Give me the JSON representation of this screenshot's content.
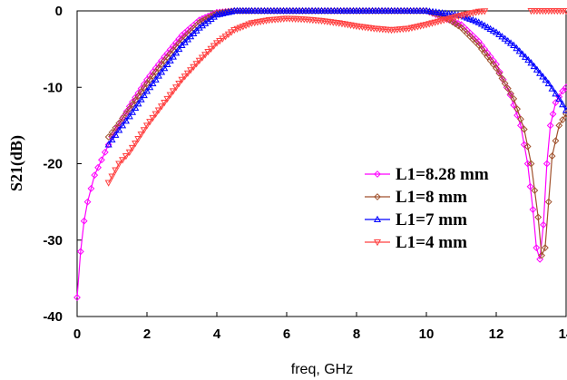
{
  "chart_data": {
    "type": "line",
    "title": "",
    "xlabel": "freq, GHz",
    "ylabel": "S21(dB)",
    "xlim": [
      0,
      14
    ],
    "ylim": [
      -40,
      0
    ],
    "xticks": [
      "0",
      "2",
      "4",
      "6",
      "8",
      "10",
      "12",
      "14"
    ],
    "yticks": [
      "0",
      "-10",
      "-20",
      "-30",
      "-40"
    ],
    "grid": false,
    "legend_position": "right",
    "series": [
      {
        "name": "L1=8.28 mm",
        "color": "#ff00ff",
        "marker": "diamond",
        "x": [
          0,
          0.1,
          0.2,
          0.3,
          0.5,
          0.8,
          1,
          1.5,
          2,
          2.5,
          3,
          3.5,
          4,
          4.5,
          5,
          6,
          7,
          8,
          9,
          10,
          11,
          11.5,
          12,
          12.4,
          12.7,
          12.9,
          13.05,
          13.15,
          13.25,
          13.35,
          13.45,
          13.55,
          13.7,
          13.9,
          14
        ],
        "y": [
          -37.5,
          -31.5,
          -27.5,
          -25,
          -21.5,
          -18.5,
          -16.5,
          -12.5,
          -9,
          -6,
          -3.2,
          -1.2,
          -0.2,
          0,
          0,
          0,
          0,
          0,
          0,
          0,
          -1.8,
          -4,
          -7,
          -11,
          -15,
          -20,
          -26,
          -31,
          -32.5,
          -28,
          -20,
          -15,
          -12,
          -10.5,
          -10
        ]
      },
      {
        "name": "L1=8 mm",
        "color": "#a0522d",
        "marker": "diamond",
        "x": [
          0.9,
          1.2,
          1.5,
          2,
          2.5,
          3,
          3.5,
          4,
          4.5,
          5,
          6,
          7,
          8,
          9,
          10,
          10.5,
          11,
          11.5,
          12,
          12.5,
          12.8,
          13,
          13.2,
          13.3,
          13.4,
          13.5,
          13.6,
          13.8,
          14
        ],
        "y": [
          -16.5,
          -14.7,
          -12.8,
          -9.5,
          -6.5,
          -3.8,
          -1.5,
          -0.3,
          0,
          0,
          0,
          0,
          0,
          0,
          0,
          -0.7,
          -2.2,
          -4.5,
          -7.5,
          -11.5,
          -15.5,
          -20,
          -27,
          -32,
          -31,
          -25,
          -19,
          -15,
          -13.5
        ]
      },
      {
        "name": "L1=7 mm",
        "color": "#0000ff",
        "marker": "triangle",
        "x": [
          0.9,
          1.2,
          1.5,
          2,
          2.5,
          3,
          3.5,
          4,
          4.5,
          5,
          6,
          7,
          8,
          9,
          10,
          11,
          11.5,
          12,
          12.5,
          13,
          13.5,
          13.8,
          14
        ],
        "y": [
          -17.5,
          -15.6,
          -13.8,
          -10.5,
          -7.5,
          -4.5,
          -2.2,
          -0.5,
          0,
          0,
          0,
          0,
          0,
          0,
          0,
          -0.6,
          -1.5,
          -2.8,
          -4.5,
          -6.8,
          -9.5,
          -11.5,
          -13
        ]
      },
      {
        "name": "L1=4 mm",
        "color": "#ff4040",
        "marker": "triangle-down",
        "x": [
          0.9,
          1.2,
          1.5,
          2,
          2.5,
          3,
          3.5,
          4,
          4.5,
          5,
          5.5,
          6,
          6.5,
          7,
          7.5,
          8,
          8.5,
          9,
          9.5,
          10,
          10.5,
          11,
          11.5,
          11.75,
          12,
          12.5,
          13,
          13.5,
          14
        ],
        "y": [
          -22.5,
          -20,
          -18.5,
          -15,
          -12,
          -9,
          -6.5,
          -4.2,
          -2.5,
          -1.6,
          -1.2,
          -1,
          -1.1,
          -1.3,
          -1.6,
          -2,
          -2.3,
          -2.5,
          -2.3,
          -1.8,
          -1.2,
          -0.6,
          -0.1,
          0,
          null,
          null,
          0,
          0,
          0
        ]
      }
    ]
  }
}
